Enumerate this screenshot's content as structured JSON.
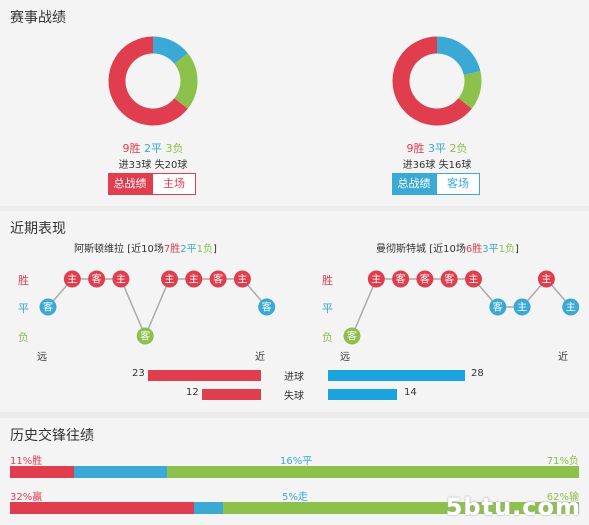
{
  "sections": {
    "record_title": "赛事战绩",
    "form_title": "近期表现",
    "h2h_title": "历史交锋往绩"
  },
  "home": {
    "record": {
      "win": "9胜",
      "draw": "2平",
      "loss": "3负",
      "goals": "进33球",
      "conceded": "失20球",
      "values": [
        9,
        2,
        3
      ]
    },
    "tab_all": "总战绩",
    "tab_venue": "主场",
    "team_name": "阿斯顿维拉",
    "form_summary": {
      "prefix": "[近10场",
      "w": "7胜",
      "d": "2平",
      "l": "1负",
      "suffix": "]"
    },
    "form": [
      {
        "label": "客",
        "result": "D"
      },
      {
        "label": "主",
        "result": "W"
      },
      {
        "label": "客",
        "result": "W"
      },
      {
        "label": "主",
        "result": "W"
      },
      {
        "label": "客",
        "result": "L"
      },
      {
        "label": "主",
        "result": "W"
      },
      {
        "label": "主",
        "result": "W"
      },
      {
        "label": "客",
        "result": "W"
      },
      {
        "label": "主",
        "result": "W"
      },
      {
        "label": "客",
        "result": "D"
      }
    ],
    "scored": "23",
    "conceded_num": "12",
    "scored_value": 23,
    "conceded_value": 12
  },
  "away": {
    "record": {
      "win": "9胜",
      "draw": "3平",
      "loss": "2负",
      "goals": "进36球",
      "conceded": "失16球",
      "values": [
        9,
        3,
        2
      ]
    },
    "tab_all": "总战绩",
    "tab_venue": "客场",
    "team_name": "曼彻斯特城",
    "form_summary": {
      "prefix": "[近10场",
      "w": "6胜",
      "d": "3平",
      "l": "1负",
      "suffix": "]"
    },
    "form": [
      {
        "label": "客",
        "result": "L"
      },
      {
        "label": "主",
        "result": "W"
      },
      {
        "label": "客",
        "result": "W"
      },
      {
        "label": "客",
        "result": "W"
      },
      {
        "label": "客",
        "result": "W"
      },
      {
        "label": "主",
        "result": "W"
      },
      {
        "label": "客",
        "result": "D"
      },
      {
        "label": "主",
        "result": "D"
      },
      {
        "label": "主",
        "result": "W"
      },
      {
        "label": "主",
        "result": "D"
      }
    ],
    "scored": "28",
    "conceded_num": "14",
    "scored_value": 28,
    "conceded_value": 14
  },
  "axis": {
    "win": "胜",
    "draw": "平",
    "loss": "负",
    "far": "远",
    "near": "近"
  },
  "bar_labels": {
    "scored": "进球",
    "conceded": "失球"
  },
  "h2h": {
    "row1": {
      "left": "11%胜",
      "mid": "16%平",
      "right": "71%负",
      "values": [
        11,
        16,
        71
      ]
    },
    "row2": {
      "left": "32%赢",
      "mid": "5%走",
      "right": "62%输",
      "values": [
        32,
        5,
        62
      ]
    }
  },
  "colors": {
    "win": "#e03e4e",
    "draw": "#3aa9d6",
    "loss": "#8cc14c",
    "line": "#aaaaaa"
  },
  "watermark": "5btu.com"
}
